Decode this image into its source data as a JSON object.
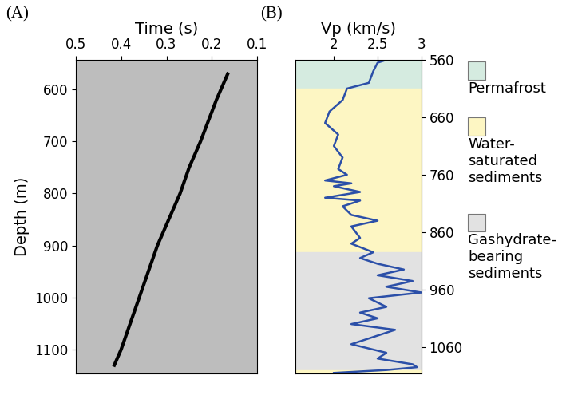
{
  "chart_data": [
    {
      "type": "line",
      "panel_label": "(A)",
      "x_label": "Time (s)",
      "y_label": "Depth (m)",
      "x": [
        0.165,
        0.19,
        0.225,
        0.25,
        0.27,
        0.295,
        0.32,
        0.34,
        0.36,
        0.38,
        0.4,
        0.415
      ],
      "values": [
        570,
        620,
        700,
        750,
        800,
        850,
        900,
        950,
        1000,
        1050,
        1100,
        1130
      ],
      "color": "#000000",
      "xlim": [
        0.5,
        0.1
      ],
      "xticks": [
        0.5,
        0.4,
        0.3,
        0.2,
        0.1
      ],
      "ylim": [
        1146,
        543
      ],
      "yticks": [
        600,
        700,
        800,
        900,
        1000,
        1100
      ]
    },
    {
      "type": "line",
      "panel_label": "(B)",
      "x_label": "Vp (km/s)",
      "x": [
        2.6,
        2.5,
        2.45,
        2.4,
        2.15,
        2.1,
        1.95,
        1.9,
        2.05,
        2.0,
        2.1,
        2.05,
        2.15,
        1.9,
        2.2,
        2.0,
        2.3,
        1.9,
        2.3,
        2.1,
        2.2,
        2.5,
        2.2,
        2.3,
        2.2,
        2.45,
        2.3,
        2.5,
        2.8,
        2.5,
        2.9,
        2.6,
        3.0,
        2.4,
        2.6,
        2.3,
        2.5,
        2.2,
        2.7,
        2.4,
        2.2,
        2.6,
        2.5,
        2.9,
        2.95,
        2.6,
        2.0
      ],
      "values": [
        560,
        565,
        580,
        600,
        610,
        630,
        650,
        670,
        690,
        710,
        730,
        750,
        760,
        770,
        775,
        780,
        790,
        800,
        805,
        815,
        830,
        840,
        850,
        870,
        880,
        895,
        905,
        915,
        925,
        935,
        945,
        955,
        965,
        975,
        990,
        1000,
        1010,
        1020,
        1030,
        1045,
        1055,
        1070,
        1080,
        1090,
        1095,
        1100,
        1105
      ],
      "color": "#2b4fa8",
      "xlim": [
        1.56,
        3
      ],
      "xticks": [
        2,
        2.5,
        3
      ],
      "ylim": [
        1106,
        560
      ],
      "yticks": [
        560,
        660,
        760,
        860,
        960,
        1060
      ],
      "zones": [
        {
          "name": "Permafrost",
          "color": "#d5ebe0",
          "top": 560,
          "bottom": 610
        },
        {
          "name": "Water-\nsaturated\nsediments",
          "color": "#fdf6c3",
          "top": 610,
          "bottom": 895
        },
        {
          "name": "Gashydrate-\nbearing\nsediments",
          "color": "#e2e2e2",
          "top": 895,
          "bottom": 1100
        },
        {
          "name": "Water-\nsaturated\nsediments",
          "color": "#fdf6c3",
          "top": 1100,
          "bottom": 1106
        }
      ]
    }
  ]
}
